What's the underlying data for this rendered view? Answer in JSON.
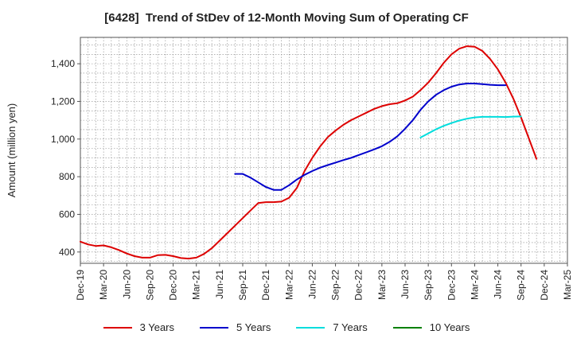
{
  "chart_data": {
    "type": "line",
    "title": "[6428]  Trend of StDev of 12-Month Moving Sum of Operating CF",
    "xlabel": "",
    "ylabel": "Amount (million yen)",
    "ylim": [
      340,
      1540
    ],
    "yticks": [
      400,
      600,
      800,
      1000,
      1200,
      1400
    ],
    "ytick_labels": [
      "400",
      "600",
      "800",
      "1,000",
      "1,200",
      "1,400"
    ],
    "xlim": [
      "2019-12",
      "2025-03"
    ],
    "xtick_labels": [
      "Dec-19",
      "Mar-20",
      "Jun-20",
      "Sep-20",
      "Dec-20",
      "Mar-21",
      "Jun-21",
      "Sep-21",
      "Dec-21",
      "Mar-22",
      "Jun-22",
      "Sep-22",
      "Dec-22",
      "Mar-23",
      "Jun-23",
      "Sep-23",
      "Dec-23",
      "Mar-24",
      "Jun-24",
      "Sep-24",
      "Dec-24",
      "Mar-25"
    ],
    "grid": true,
    "legend_position": "bottom",
    "series": [
      {
        "name": "3 Years",
        "color": "#dd0000",
        "start": "2019-12",
        "values": [
          455,
          440,
          432,
          435,
          425,
          410,
          392,
          378,
          370,
          370,
          383,
          385,
          378,
          368,
          365,
          370,
          390,
          420,
          460,
          500,
          540,
          580,
          620,
          660,
          665,
          665,
          668,
          688,
          740,
          830,
          900,
          960,
          1010,
          1045,
          1075,
          1100,
          1120,
          1140,
          1160,
          1175,
          1185,
          1190,
          1205,
          1225,
          1260,
          1300,
          1350,
          1405,
          1450,
          1480,
          1493,
          1490,
          1468,
          1425,
          1370,
          1300,
          1215,
          1115,
          1005,
          895
        ]
      },
      {
        "name": "5 Years",
        "color": "#0000cc",
        "start": "2021-08",
        "values": [
          815,
          815,
          795,
          770,
          745,
          730,
          730,
          755,
          785,
          810,
          830,
          848,
          862,
          875,
          888,
          900,
          915,
          930,
          945,
          962,
          985,
          1015,
          1055,
          1100,
          1155,
          1200,
          1235,
          1260,
          1278,
          1290,
          1295,
          1295,
          1292,
          1288,
          1286,
          1286
        ]
      },
      {
        "name": "7 Years",
        "color": "#00dddd",
        "start": "2023-08",
        "values": [
          1008,
          1030,
          1052,
          1070,
          1085,
          1098,
          1108,
          1115,
          1118,
          1118,
          1118,
          1117,
          1119,
          1120
        ]
      },
      {
        "name": "10 Years",
        "color": "#008000",
        "start": "2024-09",
        "values": []
      }
    ]
  }
}
